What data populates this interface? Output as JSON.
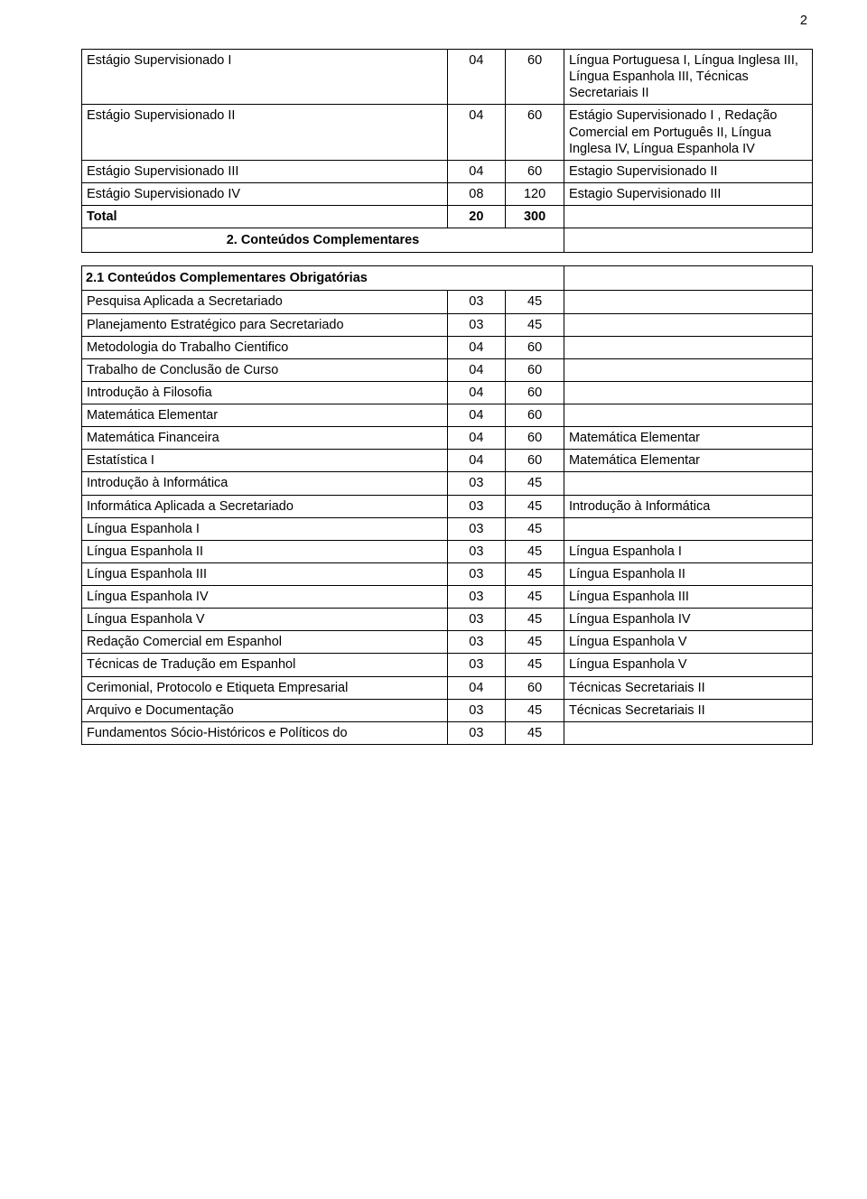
{
  "page_number": "2",
  "table1": {
    "rows": [
      {
        "c1": "Estágio Supervisionado I",
        "c2": "04",
        "c3": "60",
        "c4": "Língua Portuguesa I, Língua Inglesa III, Língua Espanhola III, Técnicas Secretariais II"
      },
      {
        "c1": "Estágio Supervisionado II",
        "c2": "04",
        "c3": "60",
        "c4": "Estágio Supervisionado I , Redação Comercial em Português II, Língua Inglesa IV, Língua Espanhola IV"
      },
      {
        "c1": "Estágio Supervisionado III",
        "c2": "04",
        "c3": "60",
        "c4": "Estagio Supervisionado II"
      },
      {
        "c1": "Estágio Supervisionado IV",
        "c2": "08",
        "c3": "120",
        "c4": "Estagio Supervisionado III"
      },
      {
        "c1": "Total",
        "c2": "20",
        "c3": "300",
        "c4": ""
      }
    ]
  },
  "section2_title": "2. Conteúdos Complementares",
  "section21_title": "2.1 Conteúdos Complementares Obrigatórias",
  "table2": {
    "rows": [
      {
        "c1": "Pesquisa Aplicada a Secretariado",
        "c2": "03",
        "c3": "45",
        "c4": ""
      },
      {
        "c1": "Planejamento Estratégico para Secretariado",
        "c2": "03",
        "c3": "45",
        "c4": ""
      },
      {
        "c1": "Metodologia do Trabalho Cientifico",
        "c2": "04",
        "c3": "60",
        "c4": ""
      },
      {
        "c1": "Trabalho de Conclusão de Curso",
        "c2": "04",
        "c3": "60",
        "c4": ""
      },
      {
        "c1": "Introdução à Filosofia",
        "c2": "04",
        "c3": "60",
        "c4": ""
      },
      {
        "c1": "Matemática Elementar",
        "c2": "04",
        "c3": "60",
        "c4": ""
      },
      {
        "c1": "Matemática Financeira",
        "c2": "04",
        "c3": "60",
        "c4": "Matemática Elementar"
      },
      {
        "c1": "Estatística I",
        "c2": "04",
        "c3": "60",
        "c4": "Matemática Elementar"
      },
      {
        "c1": "Introdução à Informática",
        "c2": "03",
        "c3": "45",
        "c4": ""
      },
      {
        "c1": "Informática Aplicada a Secretariado",
        "c2": "03",
        "c3": "45",
        "c4": "Introdução à Informática"
      },
      {
        "c1": "Língua Espanhola I",
        "c2": "03",
        "c3": "45",
        "c4": ""
      },
      {
        "c1": "Língua Espanhola II",
        "c2": "03",
        "c3": "45",
        "c4": "Língua Espanhola I"
      },
      {
        "c1": "Língua Espanhola III",
        "c2": "03",
        "c3": "45",
        "c4": "Língua Espanhola II"
      },
      {
        "c1": "Língua Espanhola IV",
        "c2": "03",
        "c3": "45",
        "c4": "Língua Espanhola III"
      },
      {
        "c1": "Língua Espanhola V",
        "c2": "03",
        "c3": "45",
        "c4": "Língua Espanhola IV"
      },
      {
        "c1": "Redação Comercial em Espanhol",
        "c2": "03",
        "c3": "45",
        "c4": "Língua Espanhola V"
      },
      {
        "c1": "Técnicas de Tradução em Espanhol",
        "c2": "03",
        "c3": "45",
        "c4": "Língua Espanhola V"
      },
      {
        "c1": "Cerimonial, Protocolo e Etiqueta Empresarial",
        "c2": "04",
        "c3": "60",
        "c4": "Técnicas Secretariais II"
      },
      {
        "c1": "Arquivo e Documentação",
        "c2": "03",
        "c3": "45",
        "c4": "Técnicas Secretariais II"
      },
      {
        "c1": "Fundamentos Sócio-Históricos e Políticos do",
        "c2": "03",
        "c3": "45",
        "c4": ""
      }
    ]
  }
}
